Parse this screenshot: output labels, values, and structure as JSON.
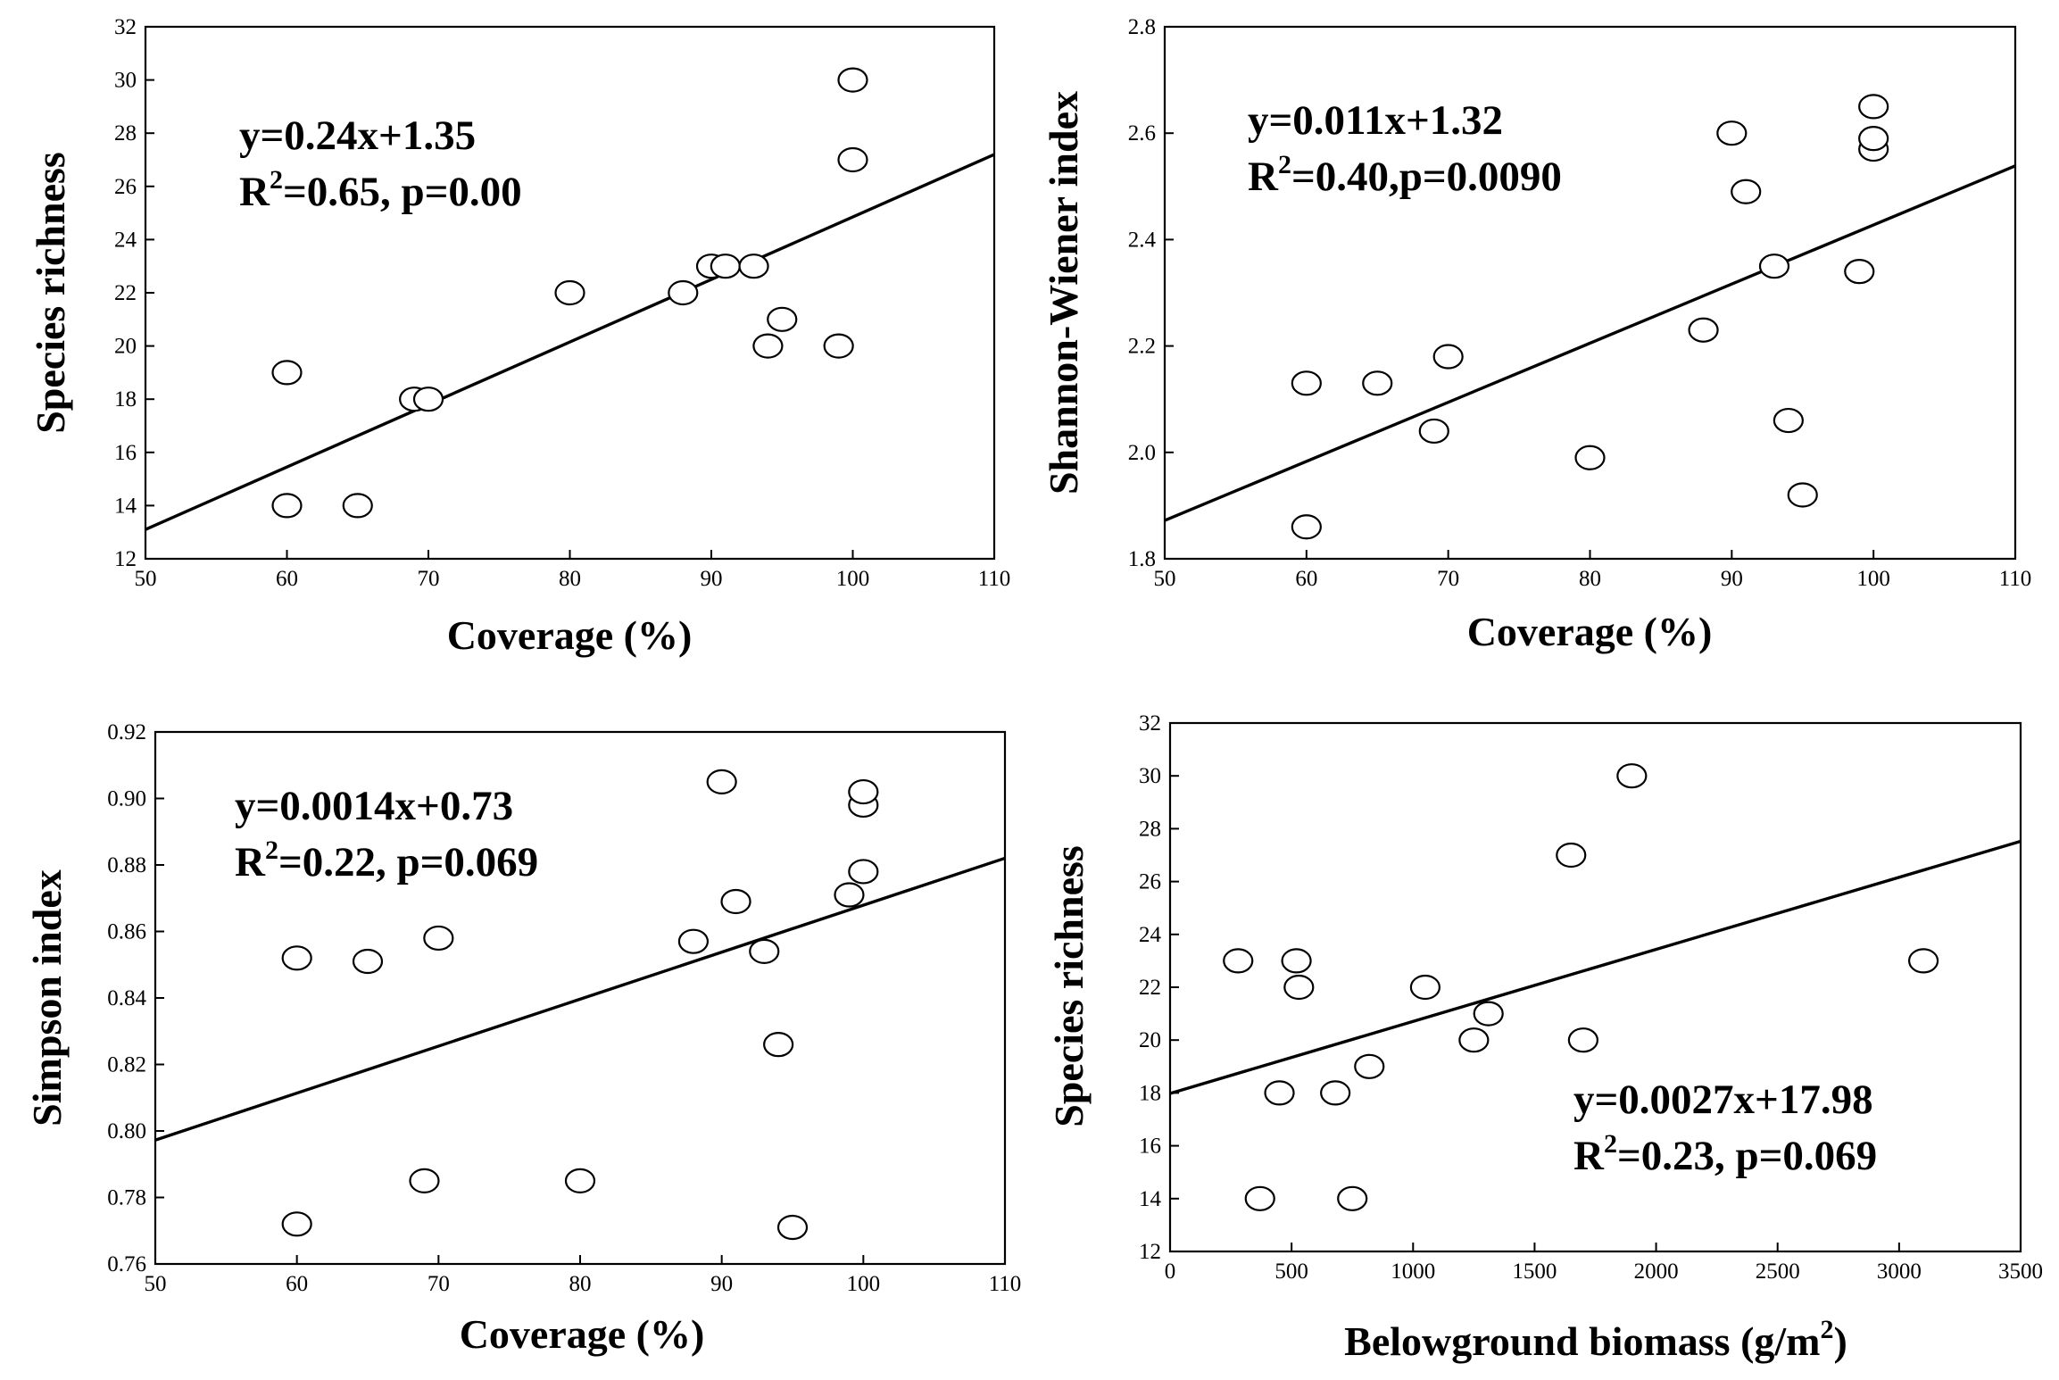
{
  "figure": {
    "description_type": "2x2 scatter plots with linear regression"
  },
  "chart_data": [
    {
      "id": "richness-coverage",
      "type": "scatter",
      "title": "",
      "xlabel": "Coverage (%)",
      "ylabel": "Species richness",
      "xlim": [
        50,
        110
      ],
      "ylim": [
        12,
        32
      ],
      "xticks": [
        50,
        60,
        70,
        80,
        90,
        100,
        110
      ],
      "yticks": [
        12,
        14,
        16,
        18,
        20,
        22,
        24,
        26,
        28,
        30,
        32
      ],
      "tick_decimals": 0,
      "grid": false,
      "equation": "y=0.24x+1.35",
      "r2_prefix": "R",
      "r2_sup": "2",
      "r2_rest": "=0.65, p=0.00",
      "fit": {
        "slope": 0.235,
        "intercept": 1.35
      },
      "points": [
        [
          60,
          19
        ],
        [
          60,
          14
        ],
        [
          65,
          14
        ],
        [
          69,
          18
        ],
        [
          70,
          18
        ],
        [
          80,
          22
        ],
        [
          88,
          22
        ],
        [
          90,
          23
        ],
        [
          91,
          23
        ],
        [
          93,
          23
        ],
        [
          94,
          20
        ],
        [
          95,
          21
        ],
        [
          99,
          20
        ],
        [
          100,
          27
        ],
        [
          100,
          30
        ]
      ]
    },
    {
      "id": "shannon-coverage",
      "type": "scatter",
      "title": "",
      "xlabel": "Coverage (%)",
      "ylabel": "Shannon-Wiener index",
      "xlim": [
        50,
        110
      ],
      "ylim": [
        1.8,
        2.8
      ],
      "xticks": [
        50,
        60,
        70,
        80,
        90,
        100,
        110
      ],
      "yticks": [
        1.8,
        2.0,
        2.2,
        2.4,
        2.6,
        2.8
      ],
      "tick_decimals": 1,
      "grid": false,
      "equation": "y=0.011x+1.32",
      "r2_prefix": "R",
      "r2_sup": "2",
      "r2_rest": "=0.40,p=0.0090",
      "fit": {
        "slope": 0.01111,
        "intercept": 1.3165
      },
      "points": [
        [
          60,
          2.13
        ],
        [
          60,
          1.86
        ],
        [
          65,
          2.13
        ],
        [
          69,
          2.04
        ],
        [
          70,
          2.18
        ],
        [
          80,
          1.99
        ],
        [
          88,
          2.23
        ],
        [
          90,
          2.6
        ],
        [
          91,
          2.49
        ],
        [
          93,
          2.35
        ],
        [
          94,
          2.06
        ],
        [
          95,
          1.92
        ],
        [
          99,
          2.34
        ],
        [
          100,
          2.57
        ],
        [
          100,
          2.59
        ],
        [
          100,
          2.65
        ]
      ]
    },
    {
      "id": "simpson-coverage",
      "type": "scatter",
      "title": "",
      "xlabel": "Coverage (%)",
      "ylabel": "Simpson index",
      "xlim": [
        50,
        110
      ],
      "ylim": [
        0.76,
        0.92
      ],
      "xticks": [
        50,
        60,
        70,
        80,
        90,
        100,
        110
      ],
      "yticks": [
        0.76,
        0.78,
        0.8,
        0.82,
        0.84,
        0.86,
        0.88,
        0.9,
        0.92
      ],
      "tick_decimals": 2,
      "grid": false,
      "equation": "y=0.0014x+0.73",
      "r2_prefix": "R",
      "r2_sup": "2",
      "r2_rest": "=0.22, p=0.069",
      "fit": {
        "slope": 0.001413,
        "intercept": 0.7266
      },
      "points": [
        [
          60,
          0.852
        ],
        [
          60,
          0.772
        ],
        [
          65,
          0.851
        ],
        [
          69,
          0.785
        ],
        [
          70,
          0.858
        ],
        [
          80,
          0.785
        ],
        [
          88,
          0.857
        ],
        [
          90,
          0.905
        ],
        [
          91,
          0.869
        ],
        [
          93,
          0.854
        ],
        [
          94,
          0.826
        ],
        [
          95,
          0.771
        ],
        [
          99,
          0.871
        ],
        [
          100,
          0.878
        ],
        [
          100,
          0.898
        ],
        [
          100,
          0.902
        ]
      ]
    },
    {
      "id": "richness-biomass",
      "type": "scatter",
      "title": "",
      "xlabel": "Belowground biomass (g/m",
      "xlabel_sup": "2",
      "xlabel_end": ")",
      "ylabel": "Species richness",
      "xlim": [
        0,
        3500
      ],
      "ylim": [
        12,
        32
      ],
      "xticks": [
        0,
        500,
        1000,
        1500,
        2000,
        2500,
        3000,
        3500
      ],
      "yticks": [
        12,
        14,
        16,
        18,
        20,
        22,
        24,
        26,
        28,
        30,
        32
      ],
      "tick_decimals": 0,
      "grid": false,
      "equation": "y=0.0027x+17.98",
      "r2_prefix": "R",
      "r2_sup": "2",
      "r2_rest": "=0.23, p=0.069",
      "fit": {
        "slope": 0.002727,
        "intercept": 17.98
      },
      "points": [
        [
          280,
          23
        ],
        [
          370,
          14
        ],
        [
          450,
          18
        ],
        [
          520,
          23
        ],
        [
          530,
          22
        ],
        [
          680,
          18
        ],
        [
          750,
          14
        ],
        [
          820,
          19
        ],
        [
          1050,
          22
        ],
        [
          1250,
          20
        ],
        [
          1310,
          21
        ],
        [
          1650,
          27
        ],
        [
          1700,
          20
        ],
        [
          1900,
          30
        ],
        [
          3100,
          23
        ]
      ]
    }
  ]
}
